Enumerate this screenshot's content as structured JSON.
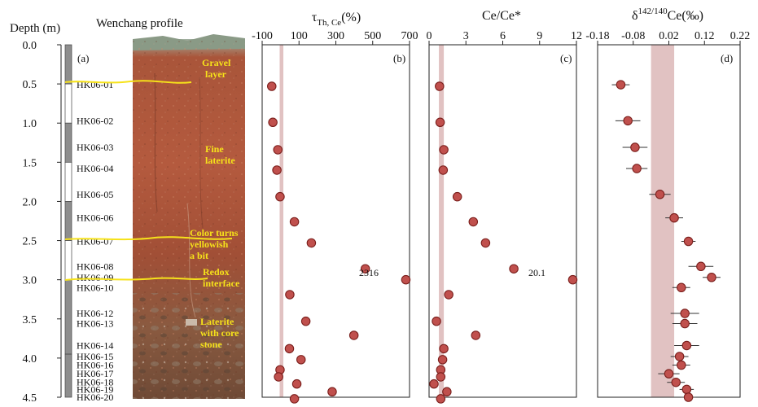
{
  "figure": {
    "depth_axis_title": "Depth (m)",
    "profile_title": "Wenchang profile",
    "panel_labels": [
      "(a)",
      "(b)",
      "(c)",
      "(d)"
    ],
    "depth_ticks": [
      "0.0",
      "0.5",
      "1.0",
      "1.5",
      "2.0",
      "2.5",
      "3.0",
      "3.5",
      "4.0",
      "4.5"
    ]
  },
  "photo_labels": [
    {
      "line1": "Gravel",
      "line2": "layer"
    },
    {
      "line1": "Fine",
      "line2": "laterite"
    },
    {
      "line1": "Color turns",
      "line2": "yellowish",
      "line3": "a bit"
    },
    {
      "line1": "Redox",
      "line2": "interface"
    },
    {
      "line1": "Laterite",
      "line2": "with core",
      "line3": "stone"
    }
  ],
  "colors": {
    "marker_fill": "#c0504d",
    "marker_edge": "#7a1f1c",
    "band": "#d9b3b3",
    "photo_soil": "#a5533a",
    "yellow_line": "#f6e21a"
  },
  "chart_data": {
    "type": "scatter",
    "y_axis": {
      "label": "Depth (m)",
      "range": [
        0.0,
        4.5
      ],
      "inverted": true
    },
    "samples": [
      {
        "name": "HK06-01",
        "depth": 0.51
      },
      {
        "name": "HK06-02",
        "depth": 0.97
      },
      {
        "name": "HK06-03",
        "depth": 1.31
      },
      {
        "name": "HK06-04",
        "depth": 1.58
      },
      {
        "name": "HK06-05",
        "depth": 1.91
      },
      {
        "name": "HK06-06",
        "depth": 2.21
      },
      {
        "name": "HK06-07",
        "depth": 2.51
      },
      {
        "name": "HK06-08",
        "depth": 2.83
      },
      {
        "name": "HK06-09",
        "depth": 2.97
      },
      {
        "name": "HK06-10",
        "depth": 3.1
      },
      {
        "name": "HK06-12",
        "depth": 3.43
      },
      {
        "name": "HK06-13",
        "depth": 3.56
      },
      {
        "name": "HK06-14",
        "depth": 3.84
      },
      {
        "name": "HK06-15",
        "depth": 3.98
      },
      {
        "name": "HK06-16",
        "depth": 4.09
      },
      {
        "name": "HK06-17",
        "depth": 4.2
      },
      {
        "name": "HK06-18",
        "depth": 4.31
      },
      {
        "name": "HK06-19",
        "depth": 4.4
      },
      {
        "name": "HK06-20",
        "depth": 4.5
      }
    ],
    "panels": [
      {
        "id": "b",
        "title_main": "τ",
        "title_sub": "Th, Ce",
        "title_suffix": "(%)",
        "xlim": [
          -100,
          700
        ],
        "ticks": [
          -100,
          100,
          300,
          500,
          700
        ],
        "tick_labels": [
          "-100",
          "100",
          "300",
          "500",
          "700"
        ],
        "band": [
          -5,
          15
        ],
        "has_error": false,
        "points": [
          {
            "depth": 0.53,
            "x": -48
          },
          {
            "depth": 0.99,
            "x": -42
          },
          {
            "depth": 1.34,
            "x": -15
          },
          {
            "depth": 1.6,
            "x": -20
          },
          {
            "depth": 1.94,
            "x": -3
          },
          {
            "depth": 2.26,
            "x": 75
          },
          {
            "depth": 2.53,
            "x": 167
          },
          {
            "depth": 2.86,
            "x": 460
          },
          {
            "depth": 3.0,
            "x": 680
          },
          {
            "depth": 3.19,
            "x": 50
          },
          {
            "depth": 3.53,
            "x": 137
          },
          {
            "depth": 3.71,
            "x": 398
          },
          {
            "depth": 3.88,
            "x": 48
          },
          {
            "depth": 4.02,
            "x": 111
          },
          {
            "depth": 4.15,
            "x": -3
          },
          {
            "depth": 4.24,
            "x": -11
          },
          {
            "depth": 4.33,
            "x": 88
          },
          {
            "depth": 4.43,
            "x": 280
          },
          {
            "depth": 4.52,
            "x": 75
          }
        ],
        "annotation": {
          "text": "2316",
          "depth": 2.91
        }
      },
      {
        "id": "c",
        "title_main": "Ce/Ce*",
        "title_sub": "",
        "title_suffix": "",
        "xlim": [
          0,
          12
        ],
        "ticks": [
          0,
          3,
          6,
          9,
          12
        ],
        "tick_labels": [
          "0",
          "3",
          "6",
          "9",
          "12"
        ],
        "band": [
          0.8,
          1.2
        ],
        "has_error": false,
        "points": [
          {
            "depth": 0.53,
            "x": 0.85
          },
          {
            "depth": 0.99,
            "x": 0.9
          },
          {
            "depth": 1.34,
            "x": 1.2
          },
          {
            "depth": 1.6,
            "x": 1.15
          },
          {
            "depth": 1.94,
            "x": 2.3
          },
          {
            "depth": 2.26,
            "x": 3.6
          },
          {
            "depth": 2.53,
            "x": 4.6
          },
          {
            "depth": 2.86,
            "x": 6.9
          },
          {
            "depth": 3.0,
            "x": 11.7
          },
          {
            "depth": 3.19,
            "x": 1.6
          },
          {
            "depth": 3.53,
            "x": 0.6
          },
          {
            "depth": 3.71,
            "x": 3.8
          },
          {
            "depth": 3.88,
            "x": 1.2
          },
          {
            "depth": 4.02,
            "x": 1.1
          },
          {
            "depth": 4.15,
            "x": 0.95
          },
          {
            "depth": 4.24,
            "x": 0.95
          },
          {
            "depth": 4.33,
            "x": 0.4
          },
          {
            "depth": 4.43,
            "x": 1.45
          },
          {
            "depth": 4.52,
            "x": 0.95
          }
        ],
        "annotation": {
          "text": "20.1",
          "depth": 2.91
        }
      },
      {
        "id": "d",
        "title_main": "δ",
        "title_sup": "142/140",
        "title_suffix": "Ce(‰)",
        "xlim": [
          -0.18,
          0.22
        ],
        "ticks": [
          -0.18,
          -0.08,
          0.02,
          0.12,
          0.22
        ],
        "tick_labels": [
          "-0.18",
          "-0.08",
          "0.02",
          "0.12",
          "0.22"
        ],
        "band": [
          -0.03,
          0.035
        ],
        "has_error": true,
        "points": [
          {
            "depth": 0.51,
            "x": -0.115,
            "err": 0.025
          },
          {
            "depth": 0.97,
            "x": -0.095,
            "err": 0.035
          },
          {
            "depth": 1.31,
            "x": -0.075,
            "err": 0.035
          },
          {
            "depth": 1.58,
            "x": -0.07,
            "err": 0.03
          },
          {
            "depth": 1.91,
            "x": -0.005,
            "err": 0.03
          },
          {
            "depth": 2.21,
            "x": 0.035,
            "err": 0.025
          },
          {
            "depth": 2.51,
            "x": 0.075,
            "err": 0.02
          },
          {
            "depth": 2.83,
            "x": 0.11,
            "err": 0.035
          },
          {
            "depth": 2.97,
            "x": 0.14,
            "err": 0.025
          },
          {
            "depth": 3.1,
            "x": 0.055,
            "err": 0.025
          },
          {
            "depth": 3.43,
            "x": 0.065,
            "err": 0.04
          },
          {
            "depth": 3.56,
            "x": 0.065,
            "err": 0.035
          },
          {
            "depth": 3.84,
            "x": 0.07,
            "err": 0.035
          },
          {
            "depth": 3.98,
            "x": 0.05,
            "err": 0.025
          },
          {
            "depth": 4.09,
            "x": 0.055,
            "err": 0.025
          },
          {
            "depth": 4.2,
            "x": 0.02,
            "err": 0.03
          },
          {
            "depth": 4.31,
            "x": 0.04,
            "err": 0.025
          },
          {
            "depth": 4.4,
            "x": 0.07,
            "err": 0.02
          },
          {
            "depth": 4.5,
            "x": 0.075,
            "err": 0.02
          }
        ]
      }
    ]
  }
}
